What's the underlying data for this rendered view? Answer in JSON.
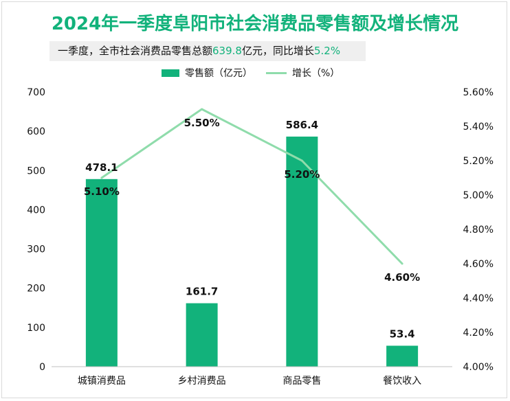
{
  "title": "2024年一季度阜阳市社会消费品零售额及增长情况",
  "subtitle": {
    "prefix": "一季度，全市社会消费品零售总额",
    "total_value": "639.8",
    "middle": "亿元，同比增长",
    "growth_value": "5.2%"
  },
  "legend": {
    "bar_label": "零售额（亿元）",
    "line_label": "增长（%）"
  },
  "colors": {
    "bar": "#12b27b",
    "line": "#8fdcab",
    "title": "#12b27b"
  },
  "chart_data": {
    "type": "bar",
    "categories": [
      "城镇消费品",
      "乡村消费品",
      "商品零售",
      "餐饮收入"
    ],
    "series": [
      {
        "name": "零售额（亿元）",
        "type": "bar",
        "axis": "left",
        "values": [
          478.1,
          161.7,
          586.4,
          53.4
        ],
        "labels": [
          "478.1",
          "161.7",
          "586.4",
          "53.4"
        ]
      },
      {
        "name": "增长（%）",
        "type": "line",
        "axis": "right",
        "values": [
          5.1,
          5.5,
          5.2,
          4.6
        ],
        "labels": [
          "5.10%",
          "5.50%",
          "5.20%",
          "4.60%"
        ]
      }
    ],
    "y_left": {
      "range": [
        0,
        700
      ],
      "ticks": [
        "0",
        "100",
        "200",
        "300",
        "400",
        "500",
        "600",
        "700"
      ]
    },
    "y_right": {
      "range": [
        4.0,
        5.6
      ],
      "ticks": [
        "4.00%",
        "4.20%",
        "4.40%",
        "4.60%",
        "4.80%",
        "5.00%",
        "5.20%",
        "5.40%",
        "5.60%"
      ]
    },
    "grid": false,
    "legend_position": "top"
  }
}
